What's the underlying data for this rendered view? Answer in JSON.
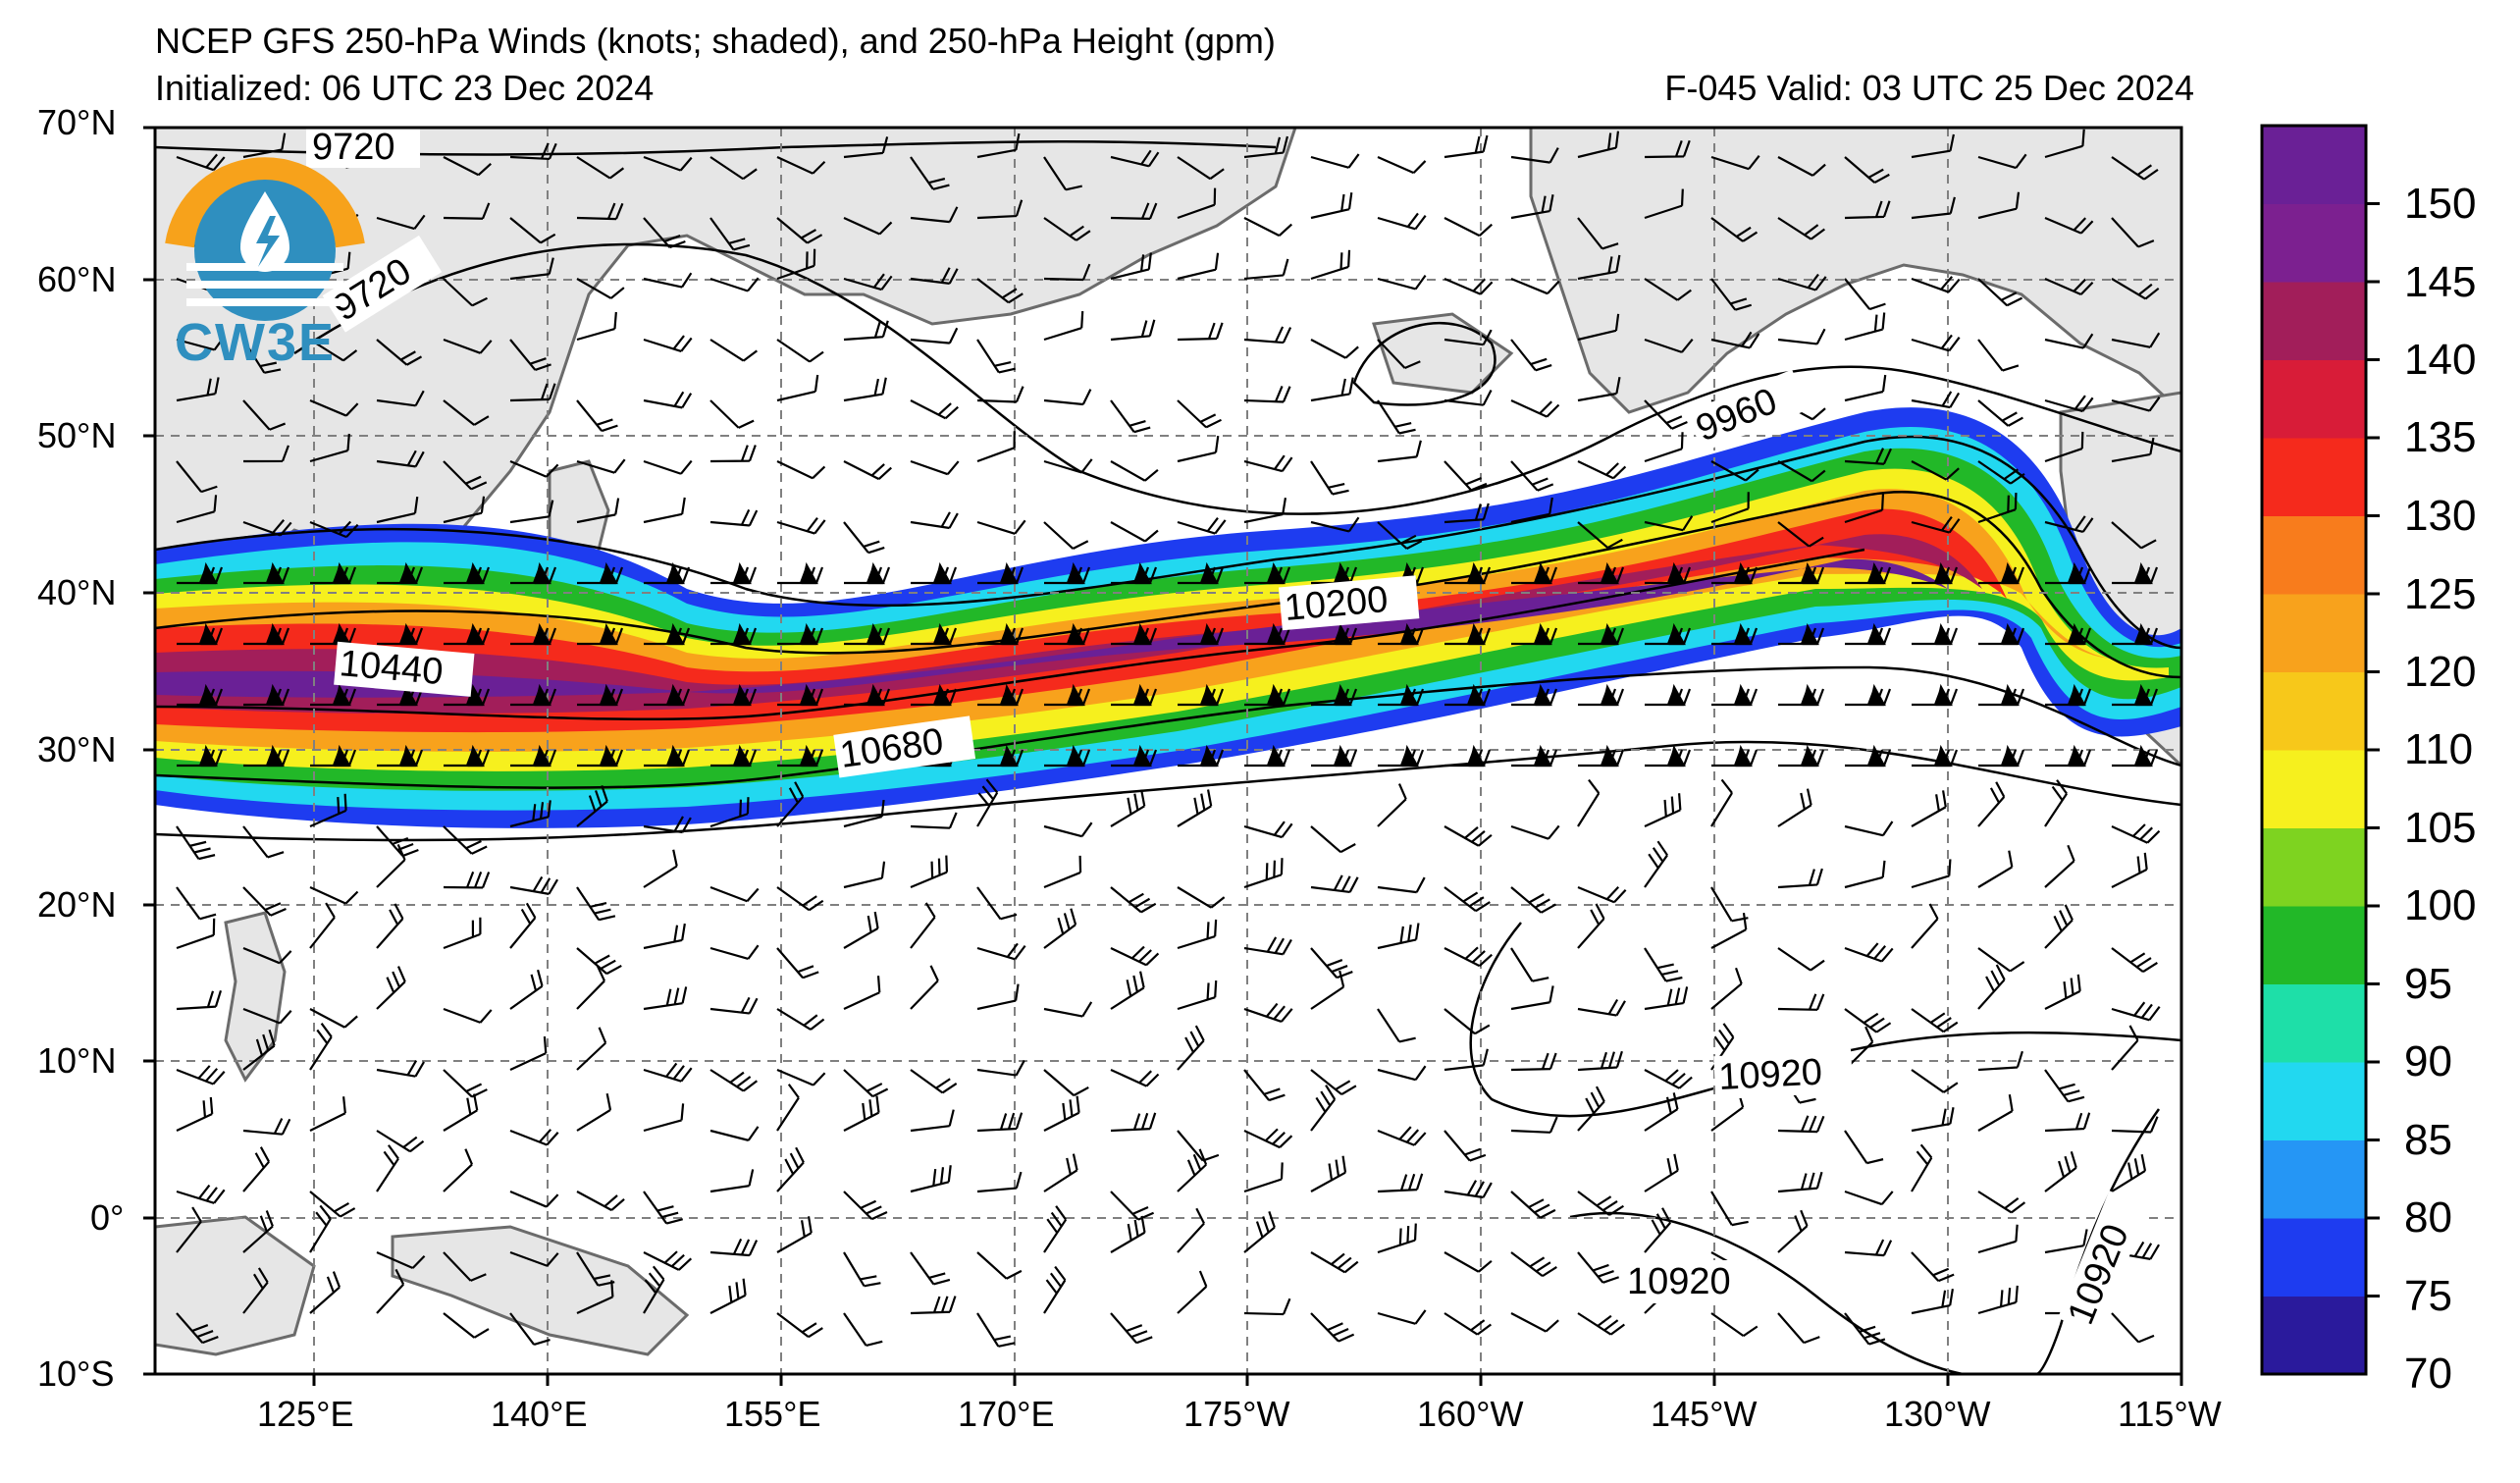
{
  "header": {
    "title": "NCEP GFS 250-hPa Winds (knots; shaded), and 250-hPa Height (gpm)",
    "initialized": "Initialized: 06 UTC 23 Dec 2024",
    "valid": "F-045  Valid: 03 UTC 25 Dec 2024"
  },
  "logo": {
    "text": "CW3E",
    "colors": [
      "#f7a21b",
      "#2f8fbf"
    ]
  },
  "axes": {
    "lat_labels": [
      "70°N",
      "60°N",
      "50°N",
      "40°N",
      "30°N",
      "20°N",
      "10°N",
      "0°",
      "10°S"
    ],
    "lon_labels": [
      "125°E",
      "140°E",
      "155°E",
      "170°E",
      "175°W",
      "160°W",
      "145°W",
      "130°W",
      "115°W"
    ]
  },
  "colorbar": {
    "labels": [
      "150",
      "145",
      "140",
      "135",
      "130",
      "125",
      "120",
      "110",
      "105",
      "100",
      "95",
      "90",
      "85",
      "80",
      "75",
      "70"
    ],
    "colors": [
      "#2a1a9c",
      "#1e3cf0",
      "#2596f5",
      "#22d8f0",
      "#1edfa8",
      "#22b828",
      "#7ed320",
      "#f6f01e",
      "#f7c81a",
      "#f8a21c",
      "#f87c1c",
      "#f52a1c",
      "#d81c38",
      "#a21e5a",
      "#7c2090",
      "#6a2096"
    ]
  },
  "contour_labels": {
    "h9720a": "9720",
    "h9720b": "9720",
    "h9960": "9960",
    "h10200": "10200",
    "h10440": "10440",
    "h10680": "10680",
    "h10920a": "10920",
    "h10920b": "10920",
    "h10920c": "10920"
  }
}
